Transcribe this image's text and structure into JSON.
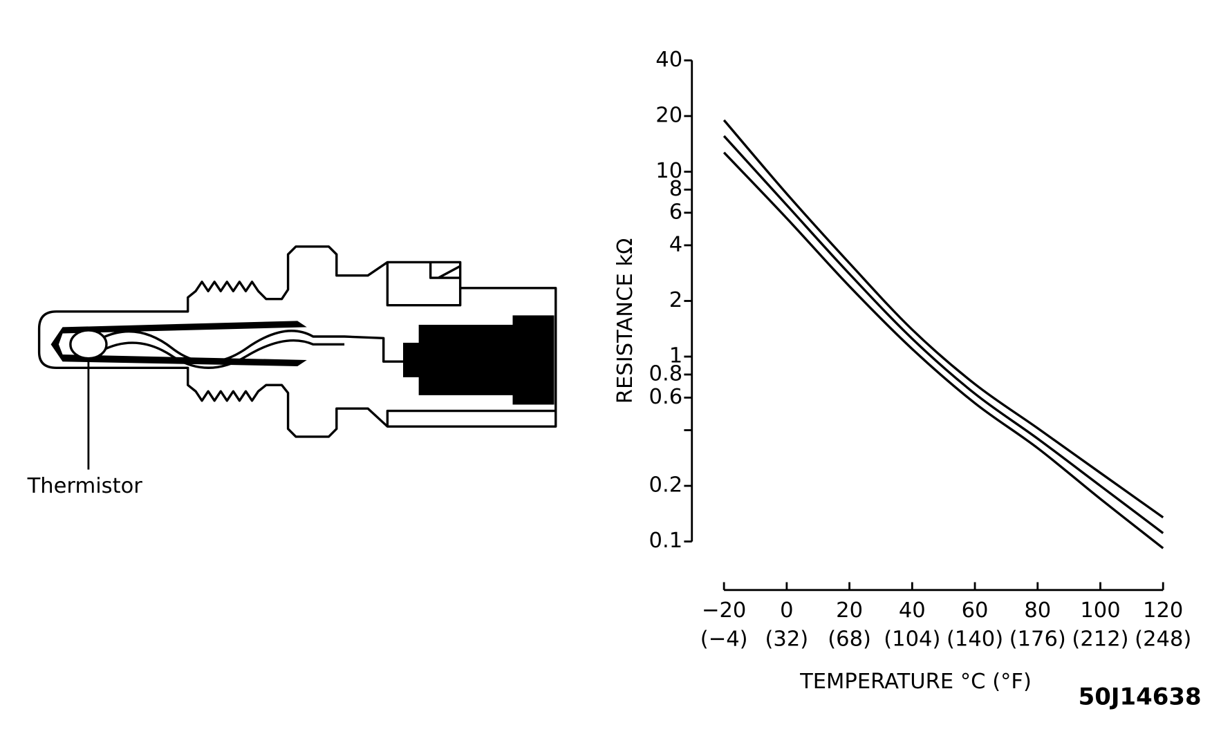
{
  "chart_data": {
    "type": "line",
    "x": [
      -20,
      0,
      20,
      40,
      60,
      80,
      100,
      120
    ],
    "series": [
      {
        "color": "#000000",
        "values": [
          19,
          7.6,
          3.2,
          1.4,
          0.71,
          0.41,
          0.235,
          0.135
        ]
      },
      {
        "color": "#000000",
        "values": [
          15.6,
          6.6,
          2.8,
          1.25,
          0.63,
          0.36,
          0.2,
          0.111
        ]
      },
      {
        "color": "#000000",
        "values": [
          12.7,
          5.6,
          2.4,
          1.1,
          0.56,
          0.32,
          0.17,
          0.092
        ]
      }
    ],
    "ylabel": "RESISTANCE kΩ",
    "xlabel": "TEMPERATURE °C (°F)",
    "xlim": [
      -20,
      120
    ],
    "xticks": [
      {
        "value": -20,
        "label": "−20"
      },
      0,
      20,
      40,
      60,
      80,
      100,
      120
    ],
    "xtick_secondary_labels": [
      "(−4)",
      "(32)",
      "(68)",
      "(104)",
      "(140)",
      "(176)",
      "(212)",
      "(248)"
    ],
    "ylim": [
      0.1,
      40
    ],
    "yscale": "log",
    "yticks": [
      40,
      20,
      10,
      8,
      6,
      4,
      2,
      1,
      0.8,
      0.6,
      {
        "value": 0.4,
        "label": null
      },
      0.2,
      0.1
    ]
  },
  "diagram": {
    "label": "Thermistor"
  },
  "figure_code": "50J14638"
}
